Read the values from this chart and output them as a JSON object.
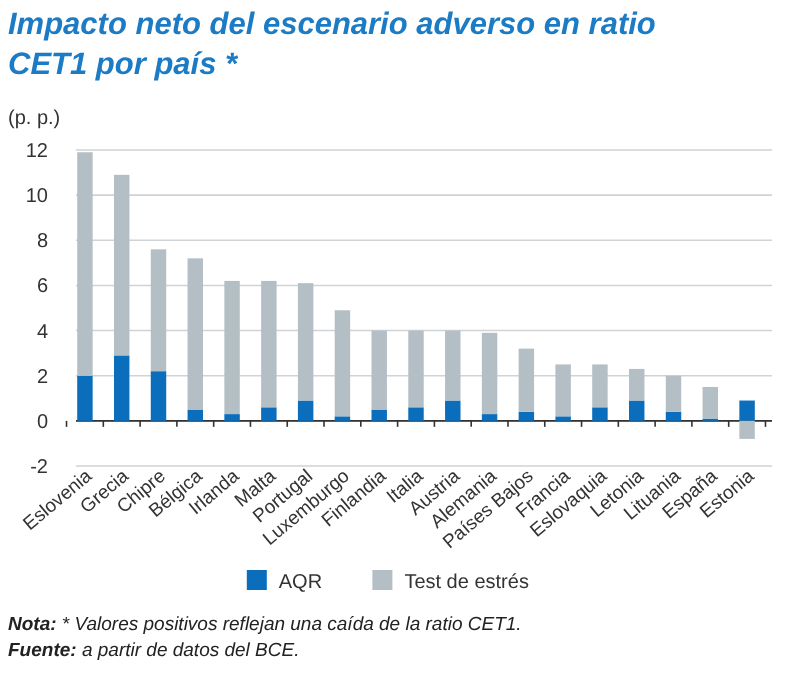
{
  "chart_data": {
    "type": "bar",
    "title": "Impacto neto del escenario adverso en ratio CET1 por país *",
    "ylabel": "(p. p.)",
    "categories": [
      "Eslovenia",
      "Grecia",
      "Chipre",
      "Bélgica",
      "Irlanda",
      "Malta",
      "Portugal",
      "Luxemburgo",
      "Finlandia",
      "Italia",
      "Austria",
      "Alemania",
      "Países Bajos",
      "Francia",
      "Eslovaquia",
      "Letonia",
      "Lituania",
      "España",
      "Estonia"
    ],
    "series": [
      {
        "name": "AQR",
        "color": "#0a6ebd",
        "values": [
          2.0,
          2.9,
          2.2,
          0.5,
          0.3,
          0.6,
          0.9,
          0.2,
          0.5,
          0.6,
          0.9,
          0.3,
          0.4,
          0.2,
          0.6,
          0.9,
          0.4,
          0.1,
          0.9
        ]
      },
      {
        "name": "Test de estrés",
        "color": "#b4bfc5",
        "values": [
          9.9,
          8.0,
          5.4,
          6.7,
          5.9,
          5.6,
          5.2,
          4.7,
          3.5,
          3.4,
          3.1,
          3.6,
          2.8,
          2.3,
          1.9,
          1.4,
          1.6,
          1.4,
          -0.8
        ]
      }
    ],
    "stacked": true,
    "ylim": [
      -2,
      12
    ],
    "yticks": [
      -2,
      0,
      2,
      4,
      6,
      8,
      10,
      12
    ],
    "grid": "y",
    "legend": "bottom",
    "annotations": [
      "Nota: * Valores positivos reflejan una caída de la ratio CET1.",
      "Fuente: a partir de datos del BCE."
    ]
  }
}
